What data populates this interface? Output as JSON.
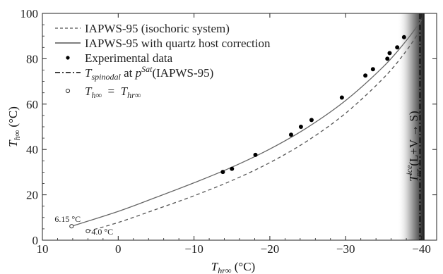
{
  "chart_data": {
    "type": "line",
    "title": "",
    "xlabel": "T",
    "xlabel_sub": "hr∞",
    "xlabel_unit": " (°C)",
    "ylabel": "T",
    "ylabel_sub": "h∞",
    "ylabel_unit": " (°C)",
    "xlim": [
      10,
      -42
    ],
    "ylim": [
      0,
      100
    ],
    "x_ticks": [
      10,
      0,
      -10,
      -20,
      -30,
      -40
    ],
    "x_tick_labels": [
      "10",
      "0",
      "−10",
      "−20",
      "−30",
      "−40"
    ],
    "y_ticks": [
      0,
      20,
      40,
      60,
      80,
      100
    ],
    "y_tick_labels": [
      "0",
      "20",
      "40",
      "60",
      "80",
      "100"
    ],
    "series": [
      {
        "name": "IAPWS-95 (isochoric system)",
        "style": "dashed",
        "color": "#555555",
        "x": [
          4.0,
          0,
          -5,
          -10,
          -15,
          -20,
          -25,
          -30,
          -35,
          -38,
          -40
        ],
        "y": [
          4.0,
          7.8,
          13.6,
          19.6,
          26.3,
          34.2,
          43.9,
          56.0,
          71.5,
          83.5,
          93.5
        ]
      },
      {
        "name": "IAPWS-95 with quartz host correction",
        "style": "solid",
        "color": "#666666",
        "x": [
          6.15,
          0,
          -5,
          -10,
          -15,
          -20,
          -25,
          -30,
          -35,
          -38,
          -40
        ],
        "y": [
          6.15,
          12.7,
          18.9,
          25.3,
          32.2,
          40.2,
          49.8,
          61.6,
          76.6,
          88.0,
          97.0
        ]
      }
    ],
    "experimental": {
      "name": "Experimental data",
      "x": [
        -13.8,
        -15.0,
        -18.1,
        -22.8,
        -24.1,
        -25.5,
        -29.5,
        -32.6,
        -33.6,
        -35.5,
        -35.8,
        -36.8,
        -37.7
      ],
      "y": [
        30.1,
        31.5,
        37.6,
        46.5,
        50.0,
        53.0,
        62.9,
        72.6,
        75.4,
        80.0,
        82.5,
        85.0,
        89.5
      ]
    },
    "equal_points": {
      "name_main": "T",
      "name_sub1": "h∞",
      "name_eq": "  =  ",
      "name_sub2": "hr∞",
      "points": [
        {
          "x": 6.15,
          "y": 6.15,
          "label": "6.15 °C"
        },
        {
          "x": 4.0,
          "y": 4.0,
          "label": "4.0 °C"
        }
      ]
    },
    "spinodal": {
      "name_main": "T",
      "name_sub": "spinodal",
      "name_mid": " at ",
      "name_p": "p",
      "name_sup": "Sat",
      "name_tail": "(IAPWS-95)",
      "x": -39.8,
      "style": "dash-dot"
    },
    "ice_band": {
      "x_start": -36.8,
      "x_end": -40.4,
      "label_main": "T",
      "label_sup": "ice",
      "label_sub": "nr",
      "label_tail": " (L+V → S)"
    },
    "legend_position": "top-left",
    "grid": false
  }
}
